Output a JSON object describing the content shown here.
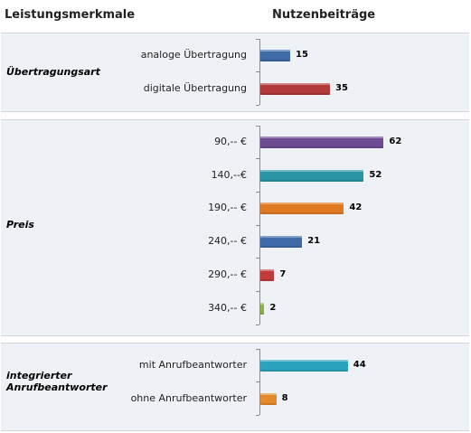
{
  "header": {
    "left_title": "Leistungsmerkmale",
    "right_title": "Nutzenbeiträge"
  },
  "chart_data": {
    "type": "bar",
    "orientation": "horizontal",
    "groups": [
      {
        "name": "Übertragungsart",
        "items": [
          {
            "label": "analoge Übertragung",
            "value": 15,
            "color": "#3e6aa8"
          },
          {
            "label": "digitale Übertragung",
            "value": 35,
            "color": "#b33a3a"
          }
        ]
      },
      {
        "name": "Preis",
        "items": [
          {
            "label": "90,-- €",
            "value": 62,
            "color": "#6e4a93"
          },
          {
            "label": "140,--€",
            "value": 52,
            "color": "#2b94a5"
          },
          {
            "label": "190,-- €",
            "value": 42,
            "color": "#e07a22"
          },
          {
            "label": "240,-- €",
            "value": 21,
            "color": "#3e6aa8"
          },
          {
            "label": "290,-- €",
            "value": 7,
            "color": "#c23b3b"
          },
          {
            "label": "340,-- €",
            "value": 2,
            "color": "#8cb247"
          }
        ]
      },
      {
        "name": "integrierter Anrufbeantworter",
        "items": [
          {
            "label": "mit Anrufbeantworter",
            "value": 44,
            "color": "#2ba3bf"
          },
          {
            "label": "ohne Anrufbeantworter",
            "value": 8,
            "color": "#e58a2a"
          }
        ]
      }
    ]
  }
}
